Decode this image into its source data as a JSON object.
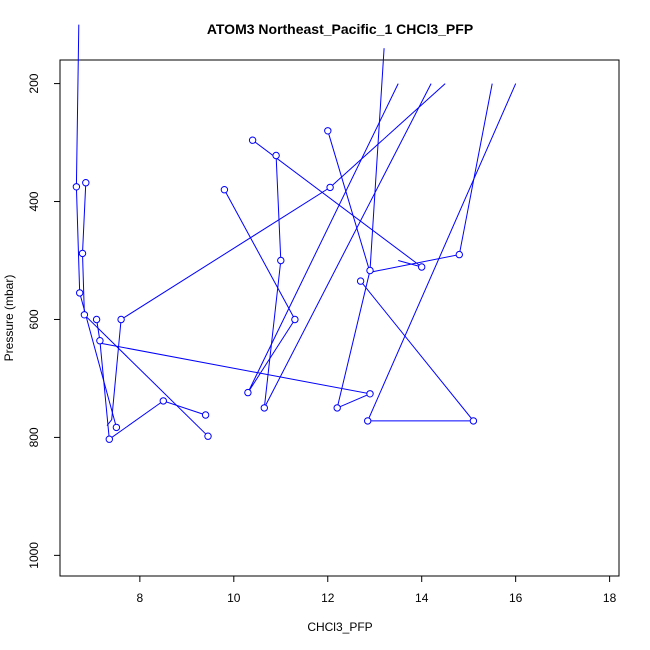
{
  "chart_data": {
    "type": "line",
    "title": "ATOM3 Northeast_Pacific_1 CHCl3_PFP",
    "xlabel": "CHCl3_PFP",
    "ylabel": "Pressure (mbar)",
    "xlim": [
      6.3,
      18.2
    ],
    "ylim": [
      1035,
      160
    ],
    "y_reversed": true,
    "x_ticks": [
      8,
      10,
      12,
      14,
      16,
      18
    ],
    "y_ticks": [
      200,
      400,
      600,
      800,
      1000
    ],
    "series_color": "#0000ff",
    "series": [
      {
        "x": [
          6.7,
          6.65,
          6.72,
          7.5
        ],
        "y": [
          100,
          375,
          555,
          783
        ],
        "points": [
          false,
          true,
          true,
          true
        ]
      },
      {
        "x": [
          6.85,
          6.78,
          6.82,
          9.45
        ],
        "y": [
          368,
          488,
          592,
          798
        ],
        "points": [
          true,
          true,
          true,
          true
        ]
      },
      {
        "x": [
          7.08,
          7.15,
          7.35,
          8.5,
          9.4
        ],
        "y": [
          600,
          636,
          803,
          738,
          762
        ],
        "points": [
          true,
          true,
          true,
          true,
          true
        ]
      },
      {
        "x": [
          7.6,
          7.4,
          7.3
        ],
        "y": [
          600,
          770,
          780
        ],
        "points": [
          true,
          false,
          false
        ]
      },
      {
        "x": [
          7.15,
          12.9,
          12.2,
          12.9,
          13.2
        ],
        "y": [
          640,
          726,
          750,
          517,
          140
        ],
        "points": [
          false,
          true,
          true,
          true,
          false
        ]
      },
      {
        "x": [
          7.6,
          12.05,
          14.5
        ],
        "y": [
          600,
          376,
          200
        ],
        "points": [
          false,
          true,
          false
        ]
      },
      {
        "x": [
          9.8,
          11.3,
          10.3,
          13.5
        ],
        "y": [
          380,
          600,
          724,
          200
        ],
        "points": [
          true,
          true,
          true,
          false
        ]
      },
      {
        "x": [
          10.4,
          14.0,
          13.5
        ],
        "y": [
          296,
          511,
          500
        ],
        "points": [
          true,
          true,
          false
        ]
      },
      {
        "x": [
          12.0,
          12.9,
          14.8,
          15.5
        ],
        "y": [
          280,
          520,
          490,
          200
        ],
        "points": [
          true,
          false,
          true,
          false
        ]
      },
      {
        "x": [
          10.9,
          11.0,
          10.65,
          14.2
        ],
        "y": [
          322,
          500,
          750,
          200
        ],
        "points": [
          true,
          true,
          true,
          false
        ]
      },
      {
        "x": [
          12.7,
          15.1,
          12.85,
          16.0
        ],
        "y": [
          535,
          772,
          772,
          200
        ],
        "points": [
          true,
          true,
          true,
          false
        ]
      }
    ]
  }
}
